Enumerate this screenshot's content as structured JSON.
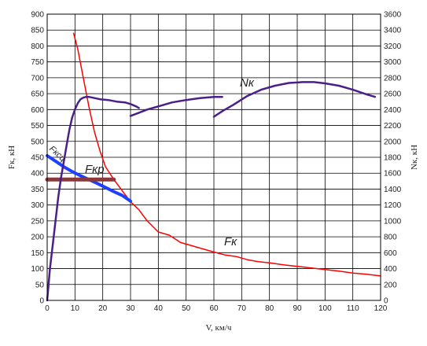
{
  "chart_data": {
    "type": "line",
    "xlabel": "V, км/ч",
    "ylabel_left": "Fк, кН",
    "ylabel_right": "Nк, кН",
    "xlim": [
      0,
      120
    ],
    "ylim_left": [
      0,
      900
    ],
    "ylim_right": [
      0,
      3600
    ],
    "x_ticks": [
      0,
      10,
      20,
      30,
      40,
      50,
      60,
      70,
      80,
      90,
      100,
      110,
      120
    ],
    "y_ticks_left": [
      0,
      50,
      100,
      150,
      200,
      250,
      300,
      350,
      400,
      450,
      500,
      550,
      600,
      650,
      700,
      750,
      800,
      850,
      900
    ],
    "y_ticks_right": [
      0,
      200,
      400,
      600,
      800,
      1000,
      1200,
      1400,
      1600,
      1800,
      2000,
      2200,
      2400,
      2600,
      2800,
      3000,
      3200,
      3400,
      3600
    ],
    "grid": true,
    "curve_labels": {
      "nk": "Nк",
      "fkp": "Fкр",
      "fksc": "Fксц",
      "fk": "Fк"
    },
    "series": [
      {
        "key": "fk",
        "axis": "left",
        "color": "#ff0000",
        "width": 1.5,
        "points": [
          [
            9.5,
            840
          ],
          [
            11,
            790
          ],
          [
            13,
            700
          ],
          [
            15,
            610
          ],
          [
            17,
            530
          ],
          [
            19,
            470
          ],
          [
            21,
            420
          ],
          [
            24,
            380
          ],
          [
            27,
            345
          ],
          [
            30,
            310
          ],
          [
            33,
            285
          ],
          [
            36,
            250
          ],
          [
            40,
            215
          ],
          [
            44,
            205
          ],
          [
            48,
            182
          ],
          [
            52,
            172
          ],
          [
            56,
            162
          ],
          [
            60,
            152
          ],
          [
            64,
            143
          ],
          [
            68,
            138
          ],
          [
            72,
            128
          ],
          [
            76,
            122
          ],
          [
            80,
            118
          ],
          [
            85,
            112
          ],
          [
            90,
            107
          ],
          [
            95,
            102
          ],
          [
            100,
            97
          ],
          [
            105,
            92
          ],
          [
            110,
            86
          ],
          [
            115,
            82
          ],
          [
            120,
            77
          ]
        ]
      },
      {
        "key": "fksc",
        "axis": "left",
        "color": "#1f3fff",
        "width": 4,
        "points": [
          [
            0,
            455
          ],
          [
            3,
            438
          ],
          [
            6,
            420
          ],
          [
            9,
            405
          ],
          [
            12,
            392
          ],
          [
            15,
            380
          ],
          [
            18,
            368
          ],
          [
            21,
            355
          ],
          [
            24,
            342
          ],
          [
            27,
            330
          ],
          [
            29,
            318
          ],
          [
            30,
            312
          ]
        ]
      },
      {
        "key": "fkp",
        "axis": "left",
        "color": "#8b3a3a",
        "width": 5,
        "points": [
          [
            0,
            380
          ],
          [
            24,
            380
          ]
        ]
      },
      {
        "key": "nk_seg1",
        "axis": "right",
        "color": "#4b1f8a",
        "width": 2.5,
        "points": [
          [
            0,
            0
          ],
          [
            1,
            400
          ],
          [
            2,
            700
          ],
          [
            3,
            1000
          ],
          [
            4,
            1300
          ],
          [
            5,
            1550
          ],
          [
            6,
            1750
          ],
          [
            7,
            1950
          ],
          [
            8,
            2150
          ],
          [
            9,
            2300
          ],
          [
            10,
            2400
          ],
          [
            11,
            2480
          ],
          [
            12,
            2530
          ],
          [
            13,
            2550
          ],
          [
            14,
            2560
          ],
          [
            15,
            2560
          ],
          [
            17,
            2545
          ],
          [
            19,
            2530
          ],
          [
            22,
            2520
          ],
          [
            25,
            2500
          ],
          [
            28,
            2490
          ],
          [
            30,
            2470
          ],
          [
            32,
            2440
          ],
          [
            33,
            2420
          ]
        ]
      },
      {
        "key": "nk_seg2",
        "axis": "right",
        "color": "#4b1f8a",
        "width": 2.5,
        "points": [
          [
            30,
            2320
          ],
          [
            33,
            2360
          ],
          [
            36,
            2400
          ],
          [
            40,
            2440
          ],
          [
            45,
            2490
          ],
          [
            50,
            2520
          ],
          [
            55,
            2545
          ],
          [
            60,
            2560
          ],
          [
            63,
            2560
          ]
        ]
      },
      {
        "key": "nk_seg3",
        "axis": "right",
        "color": "#4b1f8a",
        "width": 2.5,
        "points": [
          [
            60,
            2310
          ],
          [
            63,
            2380
          ],
          [
            67,
            2460
          ],
          [
            72,
            2570
          ],
          [
            77,
            2650
          ],
          [
            82,
            2700
          ],
          [
            87,
            2735
          ],
          [
            92,
            2745
          ],
          [
            96,
            2745
          ],
          [
            100,
            2730
          ],
          [
            105,
            2700
          ],
          [
            110,
            2650
          ],
          [
            115,
            2590
          ],
          [
            118,
            2560
          ]
        ]
      }
    ]
  }
}
